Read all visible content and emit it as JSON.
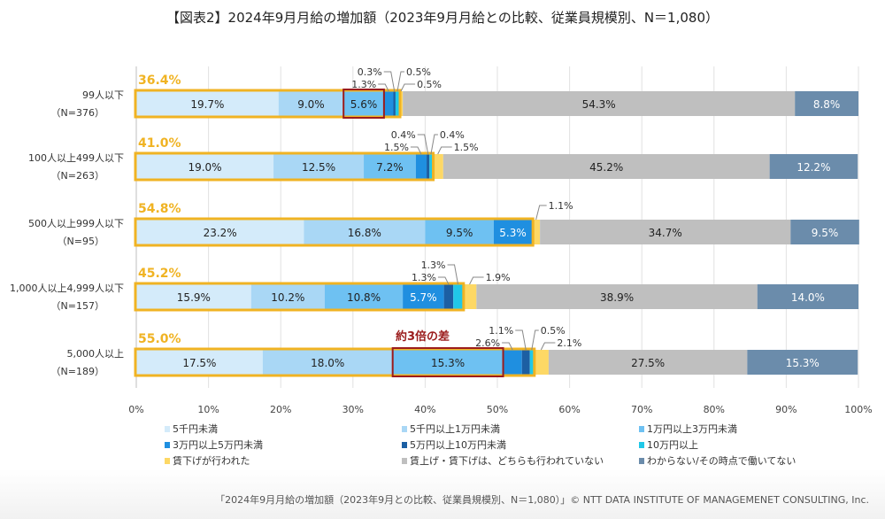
{
  "title": "【図表2】2024年9月月給の増加額（2023年9月月給との比較、従業員規模別、N＝1,080）",
  "footer": "「2024年9月月給の増加額（2023年9月との比較、従業員規模別、N＝1,080）」© NTT DATA INSTITUTE OF MANAGEMENET CONSULTING, Inc.",
  "annotation": "約3倍の差",
  "colors": {
    "increase_total": "#f0b323",
    "highlight_box": "#9b1c1c"
  },
  "chart_data": {
    "type": "bar",
    "orientation": "horizontal-stacked-100",
    "title": "【図表2】2024年9月月給の増加額（2023年9月月給との比較、従業員規模別、N＝1,080）",
    "xlabel": "",
    "ylabel": "",
    "xlim": [
      0,
      100
    ],
    "x_ticks": [
      "0%",
      "10%",
      "20%",
      "30%",
      "40%",
      "50%",
      "60%",
      "70%",
      "80%",
      "90%",
      "100%"
    ],
    "grid": true,
    "legend_position": "bottom",
    "categories": [
      {
        "label": "99人以下",
        "n": "（N=376）"
      },
      {
        "label": "100人以上499人以下",
        "n": "（N=263）"
      },
      {
        "label": "500人以上999人以下",
        "n": "（N=95）"
      },
      {
        "label": "1,000人以上4,999人以下",
        "n": "（N=157）"
      },
      {
        "label": "5,000人以上",
        "n": "（N=189）"
      }
    ],
    "increase_totals": [
      "36.4%",
      "41.0%",
      "54.8%",
      "45.2%",
      "55.0%"
    ],
    "series": [
      {
        "name": "5千円未満",
        "color": "#d4ebfa",
        "values": [
          19.7,
          19.0,
          23.2,
          15.9,
          17.5
        ]
      },
      {
        "name": "5千円以上1万円未満",
        "color": "#a9d7f5",
        "values": [
          9.0,
          12.5,
          16.8,
          10.2,
          18.0
        ]
      },
      {
        "name": "1万円以上3万円未満",
        "color": "#6ec1f2",
        "values": [
          5.6,
          7.2,
          9.5,
          10.8,
          15.3
        ]
      },
      {
        "name": "3万円以上5万円未満",
        "color": "#1f8fe0",
        "values": [
          1.3,
          1.5,
          5.3,
          5.7,
          2.6
        ]
      },
      {
        "name": "5万円以上10万円未満",
        "color": "#1c5fa3",
        "values": [
          0.3,
          0.4,
          0,
          1.3,
          1.1
        ]
      },
      {
        "name": "10万円以上",
        "color": "#20c8e8",
        "values": [
          0.5,
          0.4,
          0,
          1.3,
          0.5
        ]
      },
      {
        "name": "賃下げが行われた",
        "color": "#fdd865",
        "values": [
          0.5,
          1.5,
          1.1,
          1.9,
          2.1
        ]
      },
      {
        "name": "賃上げ・賃下げは、どちらも行われていない",
        "color": "#bfbfbf",
        "values": [
          54.3,
          45.2,
          34.7,
          38.9,
          27.5
        ]
      },
      {
        "name": "わからない/その時点で働いてない",
        "color": "#6b8cab",
        "values": [
          8.8,
          12.2,
          9.5,
          14.0,
          15.3
        ]
      }
    ],
    "segment_labels": [
      [
        "19.7%",
        "9.0%",
        "5.6%",
        "1.3%",
        "0.3%",
        "0.5%",
        "0.5%",
        "54.3%",
        "8.8%"
      ],
      [
        "19.0%",
        "12.5%",
        "7.2%",
        "1.5%",
        "0.4%",
        "0.4%",
        "1.5%",
        "45.2%",
        "12.2%"
      ],
      [
        "23.2%",
        "16.8%",
        "9.5%",
        "5.3%",
        "",
        "",
        "1.1%",
        "34.7%",
        "9.5%"
      ],
      [
        "15.9%",
        "10.2%",
        "10.8%",
        "5.7%",
        "1.3%",
        "1.3%",
        "1.9%",
        "38.9%",
        "14.0%"
      ],
      [
        "17.5%",
        "18.0%",
        "15.3%",
        "2.6%",
        "1.1%",
        "0.5%",
        "2.1%",
        "27.5%",
        "15.3%"
      ]
    ],
    "highlighted_segments": [
      {
        "row": 0,
        "series": 2
      },
      {
        "row": 4,
        "series": 2
      }
    ],
    "annotation": "約3倍の差"
  }
}
